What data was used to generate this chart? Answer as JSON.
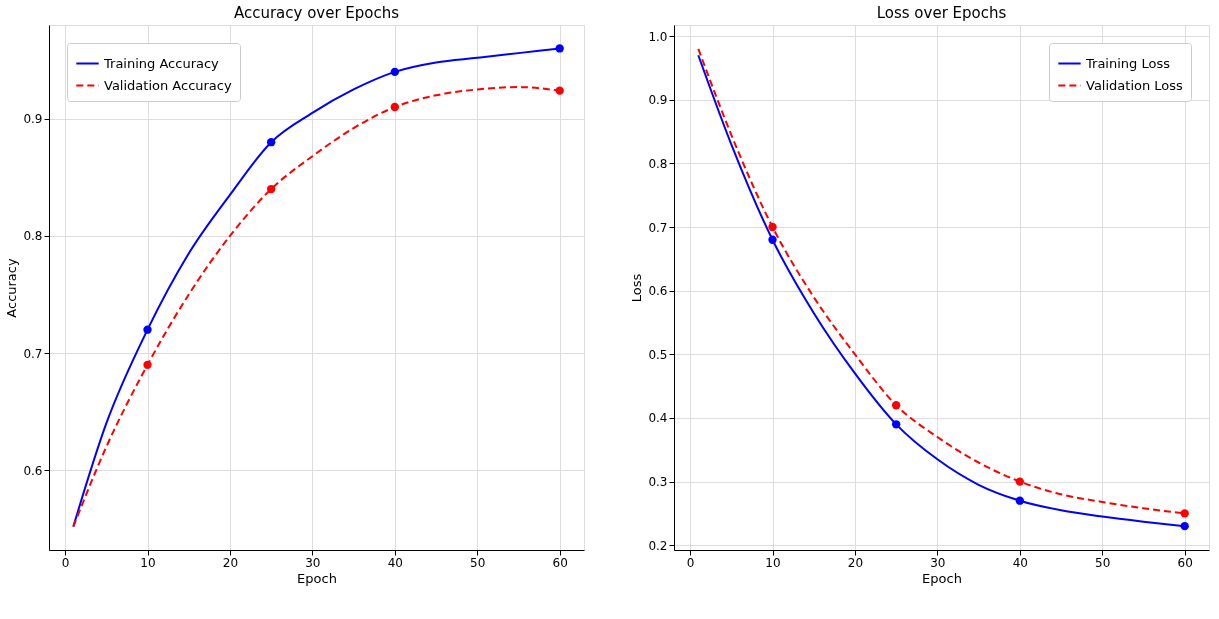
{
  "chart_data": [
    {
      "type": "line",
      "title": "Accuracy over Epochs",
      "xlabel": "Epoch",
      "ylabel": "Accuracy",
      "xlim": [
        -1.95,
        62.95
      ],
      "ylim": [
        0.532,
        0.98
      ],
      "xticks": [
        0,
        10,
        20,
        30,
        40,
        50,
        60
      ],
      "yticks": [
        0.6,
        0.7,
        0.8,
        0.9
      ],
      "grid": true,
      "legend": "top left",
      "series": [
        {
          "name": "Training Accuracy",
          "color": "#0000ff",
          "line_style": "solid",
          "x": [
            1,
            5,
            10,
            15,
            20,
            25,
            30,
            35,
            40,
            45,
            50,
            55,
            60
          ],
          "values": [
            0.552,
            0.64,
            0.72,
            0.785,
            0.835,
            0.88,
            0.905,
            0.925,
            0.94,
            0.948,
            0.952,
            0.956,
            0.96
          ]
        },
        {
          "name": "Validation Accuracy",
          "color": "#ff0000",
          "line_style": "dashed",
          "x": [
            1,
            5,
            10,
            15,
            20,
            25,
            30,
            35,
            40,
            45,
            50,
            55,
            60
          ],
          "values": [
            0.552,
            0.62,
            0.69,
            0.75,
            0.8,
            0.84,
            0.868,
            0.892,
            0.91,
            0.92,
            0.925,
            0.927,
            0.924
          ]
        },
        {
          "type": "scatter",
          "color": "#0000ff",
          "marker": "circle",
          "x": [
            10,
            25,
            40,
            60
          ],
          "values": [
            0.72,
            0.88,
            0.94,
            0.96
          ]
        },
        {
          "type": "scatter",
          "color": "#ff0000",
          "marker": "circle",
          "x": [
            10,
            25,
            40,
            60
          ],
          "values": [
            0.69,
            0.84,
            0.91,
            0.924
          ]
        }
      ]
    },
    {
      "type": "line",
      "title": "Loss over Epochs",
      "xlabel": "Epoch",
      "ylabel": "Loss",
      "xlim": [
        -1.95,
        62.95
      ],
      "ylim": [
        0.1925,
        1.0175
      ],
      "xticks": [
        0,
        10,
        20,
        30,
        40,
        50,
        60
      ],
      "yticks": [
        0.2,
        0.3,
        0.4,
        0.5,
        0.6,
        0.7,
        0.8,
        0.9,
        {
          "value": 1.0,
          "label": "1.0"
        }
      ],
      "grid": true,
      "legend": "top right",
      "series": [
        {
          "name": "Training Loss",
          "color": "#0000ff",
          "line_style": "solid",
          "x": [
            1,
            5,
            10,
            15,
            20,
            25,
            30,
            35,
            40,
            45,
            50,
            55,
            60
          ],
          "values": [
            0.97,
            0.83,
            0.68,
            0.565,
            0.47,
            0.39,
            0.335,
            0.295,
            0.27,
            0.255,
            0.245,
            0.237,
            0.23
          ]
        },
        {
          "name": "Validation Loss",
          "color": "#ff0000",
          "line_style": "dashed",
          "x": [
            1,
            5,
            10,
            15,
            20,
            25,
            30,
            35,
            40,
            45,
            50,
            55,
            60
          ],
          "values": [
            0.98,
            0.845,
            0.7,
            0.59,
            0.5,
            0.42,
            0.37,
            0.33,
            0.3,
            0.28,
            0.268,
            0.258,
            0.25
          ]
        },
        {
          "type": "scatter",
          "color": "#0000ff",
          "marker": "circle",
          "x": [
            10,
            25,
            40,
            60
          ],
          "values": [
            0.68,
            0.39,
            0.27,
            0.23
          ]
        },
        {
          "type": "scatter",
          "color": "#ff0000",
          "marker": "circle",
          "x": [
            10,
            25,
            40,
            60
          ],
          "values": [
            0.7,
            0.42,
            0.3,
            0.25
          ]
        }
      ]
    }
  ]
}
